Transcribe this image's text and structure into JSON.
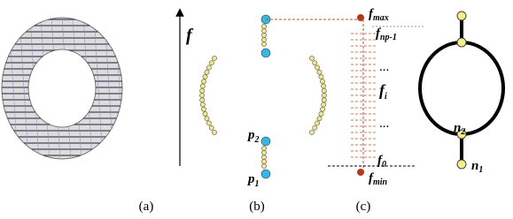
{
  "axis_label": "f",
  "captions": [
    "(a)",
    "(b)",
    "(c)"
  ],
  "points": [
    {
      "base": "p",
      "sub": "2"
    },
    {
      "base": "p",
      "sub": "1"
    }
  ],
  "levels": [
    {
      "base": "f",
      "sub": "max"
    },
    {
      "base": "f",
      "sub": "np-1"
    },
    "...",
    {
      "base": "f",
      "sub": "i"
    },
    "...",
    {
      "base": "f",
      "sub": "0"
    },
    {
      "base": "f",
      "sub": "min"
    }
  ],
  "nodes": [
    {
      "base": "n",
      "sub": "2"
    },
    {
      "base": "n",
      "sub": "1"
    }
  ]
}
